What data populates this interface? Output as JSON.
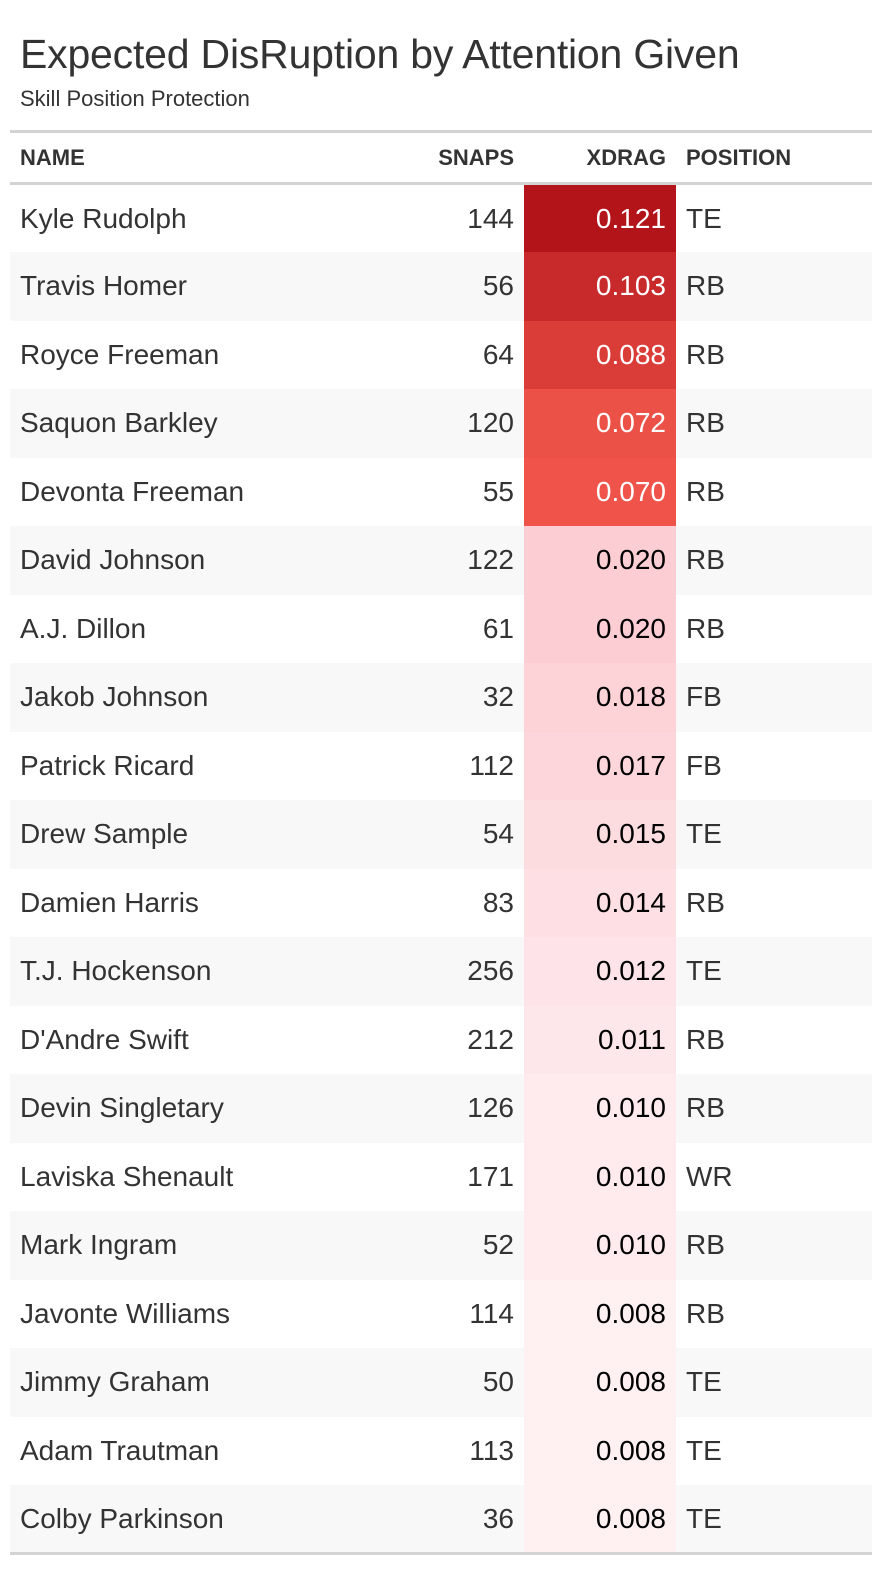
{
  "header": {
    "title": "Expected DisRuption by Attention Given",
    "subtitle": "Skill Position Protection"
  },
  "chart_data": {
    "type": "table",
    "title": "Expected DisRuption by Attention Given",
    "subtitle": "Skill Position Protection",
    "columns": [
      "NAME",
      "SNAPS",
      "XDRAG",
      "POSITION"
    ],
    "color_scale": {
      "column": "XDRAG",
      "low": "#fff0f2",
      "mid": "#fcc9cf",
      "high": "#b3141a"
    },
    "rows": [
      {
        "name": "Kyle Rudolph",
        "snaps": "144",
        "xdrag": "0.121",
        "position": "TE",
        "value": 0.121
      },
      {
        "name": "Travis Homer",
        "snaps": "56",
        "xdrag": "0.103",
        "position": "RB",
        "value": 0.103
      },
      {
        "name": "Royce Freeman",
        "snaps": "64",
        "xdrag": "0.088",
        "position": "RB",
        "value": 0.088
      },
      {
        "name": "Saquon Barkley",
        "snaps": "120",
        "xdrag": "0.072",
        "position": "RB",
        "value": 0.072
      },
      {
        "name": "Devonta Freeman",
        "snaps": "55",
        "xdrag": "0.070",
        "position": "RB",
        "value": 0.07
      },
      {
        "name": "David Johnson",
        "snaps": "122",
        "xdrag": "0.020",
        "position": "RB",
        "value": 0.02
      },
      {
        "name": "A.J. Dillon",
        "snaps": "61",
        "xdrag": "0.020",
        "position": "RB",
        "value": 0.02
      },
      {
        "name": "Jakob Johnson",
        "snaps": "32",
        "xdrag": "0.018",
        "position": "FB",
        "value": 0.018
      },
      {
        "name": "Patrick Ricard",
        "snaps": "112",
        "xdrag": "0.017",
        "position": "FB",
        "value": 0.017
      },
      {
        "name": "Drew Sample",
        "snaps": "54",
        "xdrag": "0.015",
        "position": "TE",
        "value": 0.015
      },
      {
        "name": "Damien Harris",
        "snaps": "83",
        "xdrag": "0.014",
        "position": "RB",
        "value": 0.014
      },
      {
        "name": "T.J. Hockenson",
        "snaps": "256",
        "xdrag": "0.012",
        "position": "TE",
        "value": 0.012
      },
      {
        "name": "D'Andre Swift",
        "snaps": "212",
        "xdrag": "0.011",
        "position": "RB",
        "value": 0.011
      },
      {
        "name": "Devin Singletary",
        "snaps": "126",
        "xdrag": "0.010",
        "position": "RB",
        "value": 0.01
      },
      {
        "name": "Laviska Shenault",
        "snaps": "171",
        "xdrag": "0.010",
        "position": "WR",
        "value": 0.01
      },
      {
        "name": "Mark Ingram",
        "snaps": "52",
        "xdrag": "0.010",
        "position": "RB",
        "value": 0.01
      },
      {
        "name": "Javonte Williams",
        "snaps": "114",
        "xdrag": "0.008",
        "position": "RB",
        "value": 0.008
      },
      {
        "name": "Jimmy Graham",
        "snaps": "50",
        "xdrag": "0.008",
        "position": "TE",
        "value": 0.008
      },
      {
        "name": "Adam Trautman",
        "snaps": "113",
        "xdrag": "0.008",
        "position": "TE",
        "value": 0.008
      },
      {
        "name": "Colby Parkinson",
        "snaps": "36",
        "xdrag": "0.008",
        "position": "TE",
        "value": 0.008
      }
    ]
  }
}
